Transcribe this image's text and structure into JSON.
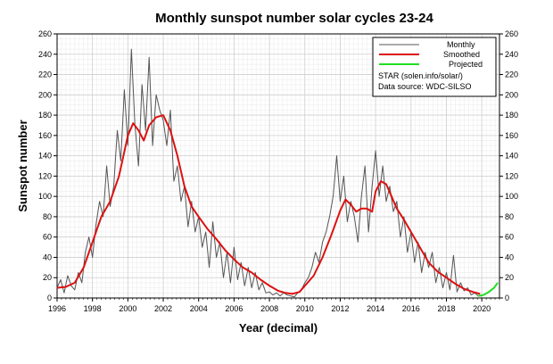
{
  "chart_data": {
    "type": "line",
    "title": "Monthly sunspot number solar cycles 23-24",
    "xlabel": "Year (decimal)",
    "ylabel": "Sunspot number",
    "xlim": [
      1996,
      2021
    ],
    "ylim": [
      0,
      260
    ],
    "x_ticks": [
      1996,
      1998,
      2000,
      2002,
      2004,
      2006,
      2008,
      2010,
      2012,
      2014,
      2016,
      2018,
      2020
    ],
    "y_ticks": [
      0,
      20,
      40,
      60,
      80,
      100,
      120,
      140,
      160,
      180,
      200,
      220,
      240,
      260
    ],
    "grid": true,
    "legend_position": "top-right",
    "legend_notes": [
      "STAR (solen.info/solar/)",
      "Data source: WDC-SILSO"
    ],
    "colors": {
      "monthly": "#555555",
      "smoothed": "#dd1111",
      "projected": "#22dd22",
      "grid": "#d0d0d0"
    },
    "series": [
      {
        "name": "Monthly",
        "x": [
          1996.0,
          1996.2,
          1996.4,
          1996.6,
          1996.8,
          1997.0,
          1997.2,
          1997.4,
          1997.6,
          1997.8,
          1998.0,
          1998.2,
          1998.4,
          1998.6,
          1998.8,
          1999.0,
          1999.2,
          1999.4,
          1999.6,
          1999.8,
          2000.0,
          2000.2,
          2000.4,
          2000.6,
          2000.8,
          2001.0,
          2001.2,
          2001.4,
          2001.6,
          2001.8,
          2002.0,
          2002.2,
          2002.4,
          2002.6,
          2002.8,
          2003.0,
          2003.2,
          2003.4,
          2003.6,
          2003.8,
          2004.0,
          2004.2,
          2004.4,
          2004.6,
          2004.8,
          2005.0,
          2005.2,
          2005.4,
          2005.6,
          2005.8,
          2006.0,
          2006.2,
          2006.4,
          2006.6,
          2006.8,
          2007.0,
          2007.2,
          2007.4,
          2007.6,
          2007.8,
          2008.0,
          2008.2,
          2008.4,
          2008.6,
          2008.8,
          2009.0,
          2009.2,
          2009.4,
          2009.6,
          2009.8,
          2010.0,
          2010.2,
          2010.4,
          2010.6,
          2010.8,
          2011.0,
          2011.2,
          2011.4,
          2011.6,
          2011.8,
          2012.0,
          2012.2,
          2012.4,
          2012.6,
          2012.8,
          2013.0,
          2013.2,
          2013.4,
          2013.6,
          2013.8,
          2014.0,
          2014.2,
          2014.4,
          2014.6,
          2014.8,
          2015.0,
          2015.2,
          2015.4,
          2015.6,
          2015.8,
          2016.0,
          2016.2,
          2016.4,
          2016.6,
          2016.8,
          2017.0,
          2017.2,
          2017.4,
          2017.6,
          2017.8,
          2018.0,
          2018.2,
          2018.4,
          2018.6,
          2018.8,
          2019.0,
          2019.2,
          2019.4,
          2019.6,
          2019.8,
          2020.0
        ],
        "y": [
          10,
          18,
          5,
          22,
          12,
          8,
          25,
          15,
          45,
          60,
          40,
          72,
          95,
          80,
          130,
          90,
          110,
          165,
          135,
          205,
          150,
          245,
          170,
          130,
          210,
          165,
          237,
          150,
          200,
          185,
          175,
          150,
          185,
          115,
          130,
          95,
          110,
          70,
          95,
          65,
          80,
          50,
          65,
          30,
          75,
          40,
          55,
          20,
          45,
          15,
          50,
          18,
          35,
          12,
          30,
          10,
          25,
          8,
          15,
          5,
          6,
          3,
          5,
          2,
          5,
          3,
          2,
          1,
          5,
          8,
          15,
          20,
          30,
          45,
          35,
          55,
          65,
          80,
          100,
          140,
          95,
          120,
          75,
          95,
          80,
          55,
          100,
          130,
          65,
          110,
          145,
          100,
          130,
          95,
          110,
          85,
          95,
          60,
          80,
          45,
          65,
          35,
          55,
          25,
          45,
          30,
          45,
          15,
          30,
          10,
          25,
          8,
          42,
          6,
          15,
          7,
          10,
          3,
          5,
          2,
          2
        ]
      },
      {
        "name": "Smoothed",
        "x": [
          1996.0,
          1996.5,
          1997.0,
          1997.5,
          1998.0,
          1998.5,
          1999.0,
          1999.5,
          2000.0,
          2000.3,
          2000.6,
          2000.9,
          2001.2,
          2001.6,
          2002.0,
          2002.4,
          2002.8,
          2003.2,
          2003.6,
          2004.0,
          2004.5,
          2005.0,
          2005.5,
          2006.0,
          2006.5,
          2007.0,
          2007.5,
          2008.0,
          2008.5,
          2008.9,
          2009.3,
          2009.7,
          2010.0,
          2010.5,
          2011.0,
          2011.5,
          2012.0,
          2012.3,
          2012.6,
          2012.9,
          2013.2,
          2013.5,
          2013.8,
          2014.0,
          2014.3,
          2014.6,
          2014.9,
          2015.2,
          2015.6,
          2016.0,
          2016.5,
          2017.0,
          2017.5,
          2018.0,
          2018.5,
          2019.0,
          2019.5,
          2019.9
        ],
        "y": [
          10,
          11,
          15,
          30,
          55,
          80,
          95,
          120,
          160,
          172,
          165,
          155,
          170,
          178,
          180,
          165,
          140,
          110,
          90,
          80,
          68,
          58,
          47,
          38,
          30,
          25,
          18,
          12,
          7,
          5,
          4,
          6,
          12,
          22,
          40,
          62,
          86,
          97,
          92,
          85,
          88,
          88,
          85,
          105,
          115,
          112,
          100,
          88,
          77,
          65,
          50,
          35,
          26,
          20,
          14,
          9,
          6,
          4
        ]
      },
      {
        "name": "Projected",
        "x": [
          2019.8,
          2020.1,
          2020.4,
          2020.7,
          2020.9
        ],
        "y": [
          2,
          3,
          6,
          10,
          15
        ]
      }
    ]
  }
}
